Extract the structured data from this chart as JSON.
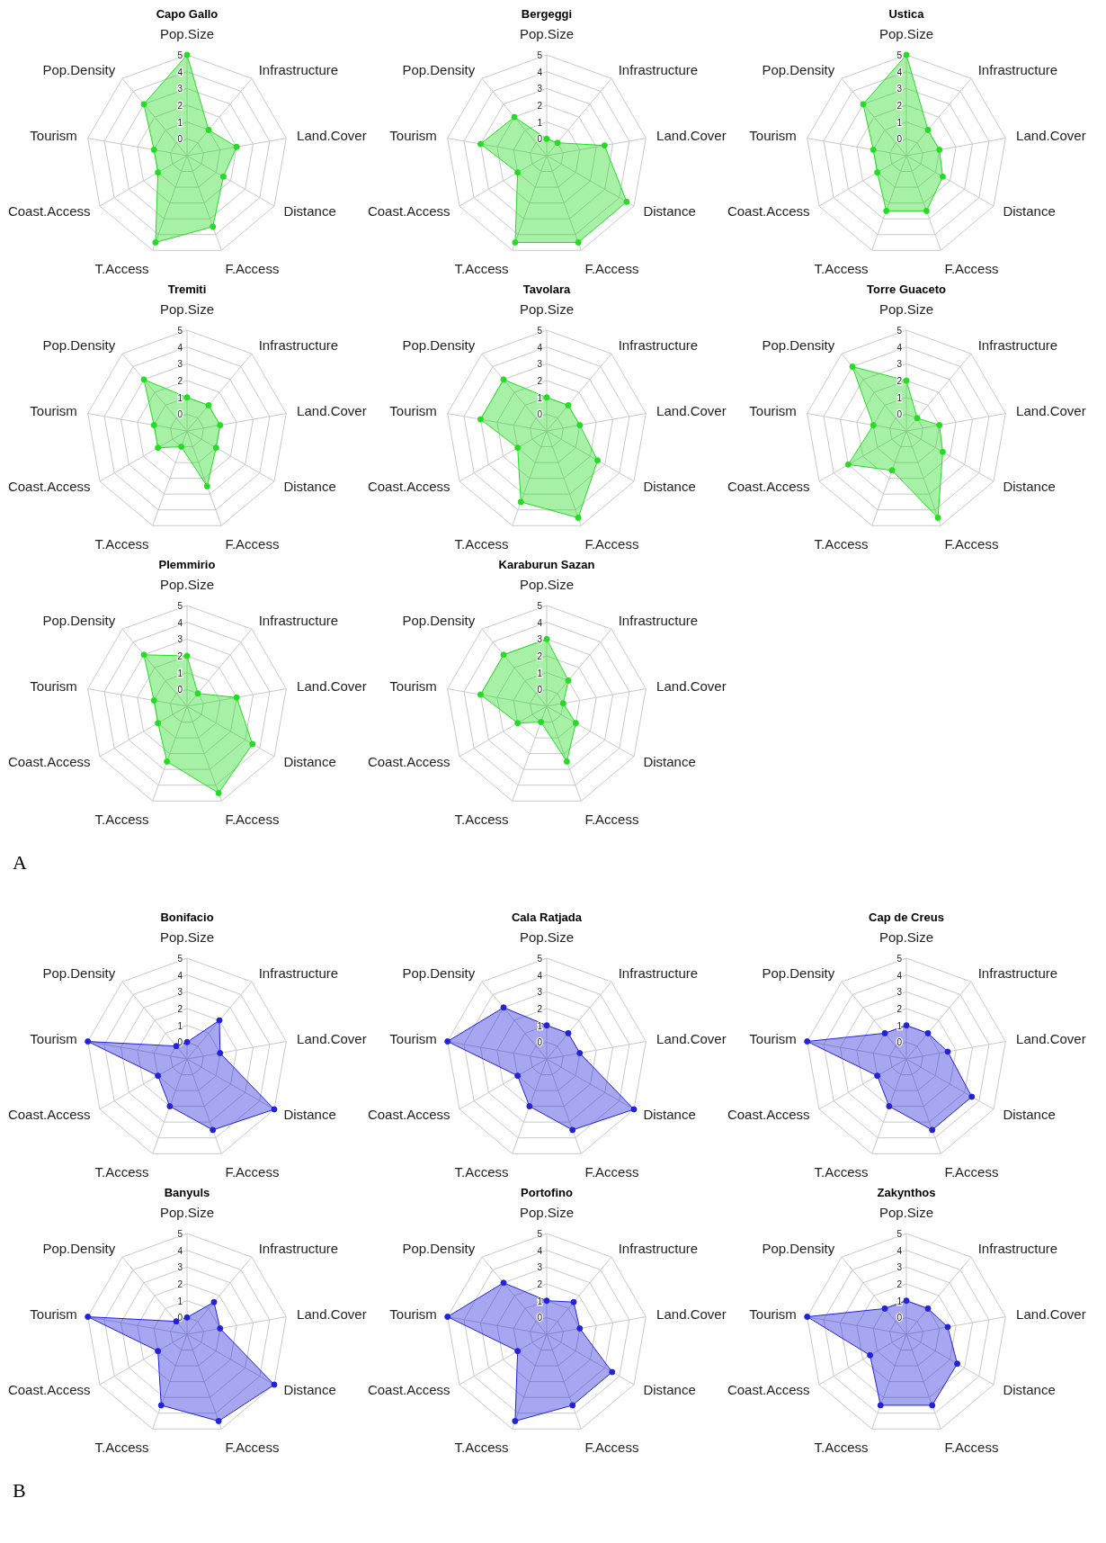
{
  "chart_data": [
    {
      "type": "radar",
      "title": "Capo Gallo",
      "categories": [
        "Pop.Size",
        "Infrastructure",
        "Land.Cover",
        "Distance",
        "F.Access",
        "T.Access",
        "Coast.Access",
        "Tourism",
        "Pop.Density"
      ],
      "series": [
        {
          "color": "#22dd22",
          "values": [
            5,
            1,
            2,
            1.5,
            3.5,
            4.5,
            1,
            1,
            3
          ]
        }
      ],
      "ylim": [
        -1,
        5
      ],
      "yticks": [
        0,
        1,
        2,
        3,
        4,
        5
      ],
      "grid": true,
      "marker": "circle"
    },
    {
      "type": "radar",
      "title": "Bergeggi",
      "categories": [
        "Pop.Size",
        "Infrastructure",
        "Land.Cover",
        "Distance",
        "F.Access",
        "T.Access",
        "Coast.Access",
        "Tourism",
        "Pop.Density"
      ],
      "series": [
        {
          "color": "#22dd22",
          "values": [
            0,
            0,
            2.5,
            4.5,
            4.5,
            4.5,
            1,
            3,
            2
          ]
        }
      ],
      "ylim": [
        -1,
        5
      ],
      "yticks": [
        0,
        1,
        2,
        3,
        4,
        5
      ],
      "grid": true,
      "marker": "circle"
    },
    {
      "type": "radar",
      "title": "Ustica",
      "categories": [
        "Pop.Size",
        "Infrastructure",
        "Land.Cover",
        "Distance",
        "F.Access",
        "T.Access",
        "Coast.Access",
        "Tourism",
        "Pop.Density"
      ],
      "series": [
        {
          "color": "#22dd22",
          "values": [
            5,
            1,
            1,
            1.5,
            2.5,
            2.5,
            1,
            1,
            3
          ]
        }
      ],
      "ylim": [
        -1,
        5
      ],
      "yticks": [
        0,
        1,
        2,
        3,
        4,
        5
      ],
      "grid": true,
      "marker": "circle"
    },
    {
      "type": "radar",
      "title": "Tremiti",
      "categories": [
        "Pop.Size",
        "Infrastructure",
        "Land.Cover",
        "Distance",
        "F.Access",
        "T.Access",
        "Coast.Access",
        "Tourism",
        "Pop.Density"
      ],
      "series": [
        {
          "color": "#22dd22",
          "values": [
            1,
            1,
            1,
            1,
            2.5,
            0,
            1,
            1,
            3
          ]
        }
      ],
      "ylim": [
        -1,
        5
      ],
      "yticks": [
        0,
        1,
        2,
        3,
        4,
        5
      ],
      "grid": true,
      "marker": "circle"
    },
    {
      "type": "radar",
      "title": "Tavolara",
      "categories": [
        "Pop.Size",
        "Infrastructure",
        "Land.Cover",
        "Distance",
        "F.Access",
        "T.Access",
        "Coast.Access",
        "Tourism",
        "Pop.Density"
      ],
      "series": [
        {
          "color": "#22dd22",
          "values": [
            1,
            1,
            1,
            2.5,
            4.5,
            3.5,
            1,
            3,
            3
          ]
        }
      ],
      "ylim": [
        -1,
        5
      ],
      "yticks": [
        0,
        1,
        2,
        3,
        4,
        5
      ],
      "grid": true,
      "marker": "circle"
    },
    {
      "type": "radar",
      "title": "Torre Guaceto",
      "categories": [
        "Pop.Size",
        "Infrastructure",
        "Land.Cover",
        "Distance",
        "F.Access",
        "T.Access",
        "Coast.Access",
        "Tourism",
        "Pop.Density"
      ],
      "series": [
        {
          "color": "#22dd22",
          "values": [
            2,
            0,
            1,
            1.5,
            4.5,
            1.5,
            3,
            1,
            4
          ]
        }
      ],
      "ylim": [
        -1,
        5
      ],
      "yticks": [
        0,
        1,
        2,
        3,
        4,
        5
      ],
      "grid": true,
      "marker": "circle"
    },
    {
      "type": "radar",
      "title": "Plemmirio",
      "categories": [
        "Pop.Size",
        "Infrastructure",
        "Land.Cover",
        "Distance",
        "F.Access",
        "T.Access",
        "Coast.Access",
        "Tourism",
        "Pop.Density"
      ],
      "series": [
        {
          "color": "#22dd22",
          "values": [
            2,
            0,
            2,
            3.5,
            4.5,
            2.5,
            1,
            1,
            3
          ]
        }
      ],
      "ylim": [
        -1,
        5
      ],
      "yticks": [
        0,
        1,
        2,
        3,
        4,
        5
      ],
      "grid": true,
      "marker": "circle"
    },
    {
      "type": "radar",
      "title": "Karaburun Sazan",
      "categories": [
        "Pop.Size",
        "Infrastructure",
        "Land.Cover",
        "Distance",
        "F.Access",
        "T.Access",
        "Coast.Access",
        "Tourism",
        "Pop.Density"
      ],
      "series": [
        {
          "color": "#22dd22",
          "values": [
            3,
            1,
            0,
            1,
            2.5,
            0,
            1,
            3,
            3
          ]
        }
      ],
      "ylim": [
        -1,
        5
      ],
      "yticks": [
        0,
        1,
        2,
        3,
        4,
        5
      ],
      "grid": true,
      "marker": "circle",
      "annotations": [
        "A"
      ]
    },
    {
      "type": "radar",
      "title": "Bonifacio",
      "categories": [
        "Pop.Size",
        "Infrastructure",
        "Land.Cover",
        "Distance",
        "F.Access",
        "T.Access",
        "Coast.Access",
        "Tourism",
        "Pop.Density"
      ],
      "series": [
        {
          "color": "#2222dd",
          "values": [
            0,
            2,
            1,
            5,
            3.5,
            2,
            1,
            5,
            0
          ]
        }
      ],
      "ylim": [
        -1,
        5
      ],
      "yticks": [
        0,
        1,
        2,
        3,
        4,
        5
      ],
      "grid": true,
      "marker": "circle"
    },
    {
      "type": "radar",
      "title": "Cala Ratjada",
      "categories": [
        "Pop.Size",
        "Infrastructure",
        "Land.Cover",
        "Distance",
        "F.Access",
        "T.Access",
        "Coast.Access",
        "Tourism",
        "Pop.Density"
      ],
      "series": [
        {
          "color": "#2222dd",
          "values": [
            1,
            1,
            1,
            5,
            3.5,
            2,
            1,
            5,
            3
          ]
        }
      ],
      "ylim": [
        -1,
        5
      ],
      "yticks": [
        0,
        1,
        2,
        3,
        4,
        5
      ],
      "grid": true,
      "marker": "circle"
    },
    {
      "type": "radar",
      "title": "Cap de Creus",
      "categories": [
        "Pop.Size",
        "Infrastructure",
        "Land.Cover",
        "Distance",
        "F.Access",
        "T.Access",
        "Coast.Access",
        "Tourism",
        "Pop.Density"
      ],
      "series": [
        {
          "color": "#2222dd",
          "values": [
            1,
            1,
            1.5,
            3.5,
            3.5,
            2,
            1,
            5,
            1
          ]
        }
      ],
      "ylim": [
        -1,
        5
      ],
      "yticks": [
        0,
        1,
        2,
        3,
        4,
        5
      ],
      "grid": true,
      "marker": "circle"
    },
    {
      "type": "radar",
      "title": "Banyuls",
      "categories": [
        "Pop.Size",
        "Infrastructure",
        "Land.Cover",
        "Distance",
        "F.Access",
        "T.Access",
        "Coast.Access",
        "Tourism",
        "Pop.Density"
      ],
      "series": [
        {
          "color": "#2222dd",
          "values": [
            0,
            1.5,
            1,
            5,
            4.5,
            3.5,
            1,
            5,
            0
          ]
        }
      ],
      "ylim": [
        -1,
        5
      ],
      "yticks": [
        0,
        1,
        2,
        3,
        4,
        5
      ],
      "grid": true,
      "marker": "circle"
    },
    {
      "type": "radar",
      "title": "Portofino",
      "categories": [
        "Pop.Size",
        "Infrastructure",
        "Land.Cover",
        "Distance",
        "F.Access",
        "T.Access",
        "Coast.Access",
        "Tourism",
        "Pop.Density"
      ],
      "series": [
        {
          "color": "#2222dd",
          "values": [
            1,
            1.5,
            1,
            3.5,
            3.5,
            4.5,
            1,
            5,
            3
          ]
        }
      ],
      "ylim": [
        -1,
        5
      ],
      "yticks": [
        0,
        1,
        2,
        3,
        4,
        5
      ],
      "grid": true,
      "marker": "circle"
    },
    {
      "type": "radar",
      "title": "Zakynthos",
      "categories": [
        "Pop.Size",
        "Infrastructure",
        "Land.Cover",
        "Distance",
        "F.Access",
        "T.Access",
        "Coast.Access",
        "Tourism",
        "Pop.Density"
      ],
      "series": [
        {
          "color": "#2222dd",
          "values": [
            1,
            1,
            1.5,
            2.5,
            3.5,
            3.5,
            1.5,
            5,
            1
          ]
        }
      ],
      "ylim": [
        -1,
        5
      ],
      "yticks": [
        0,
        1,
        2,
        3,
        4,
        5
      ],
      "grid": true,
      "marker": "circle",
      "annotations": [
        "B"
      ]
    }
  ]
}
